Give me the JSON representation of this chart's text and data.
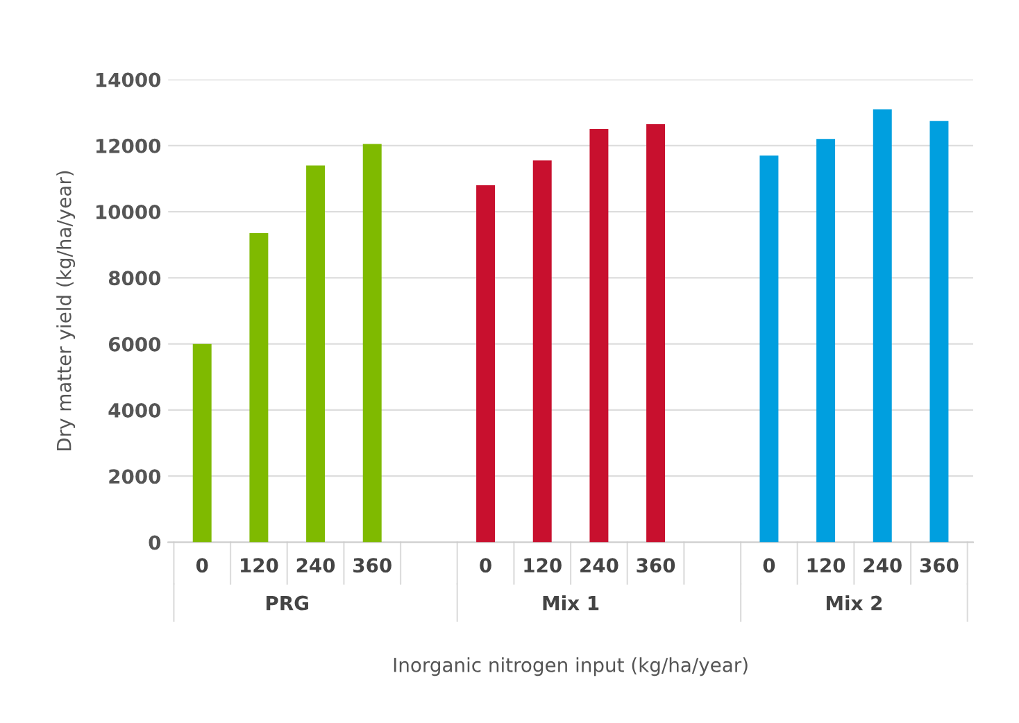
{
  "chart_data": {
    "type": "bar",
    "xlabel": "Inorganic nitrogen input (kg/ha/year)",
    "ylabel": "Dry matter yield (kg/ha/year)",
    "categories": [
      "0",
      "120",
      "240",
      "360",
      null,
      "0",
      "120",
      "240",
      "360",
      null,
      "0",
      "120",
      "240",
      "360"
    ],
    "values": [
      6000,
      9350,
      11400,
      12050,
      null,
      10800,
      11550,
      12500,
      12650,
      null,
      11700,
      12200,
      13100,
      12750
    ],
    "colors": [
      "#7fba00",
      "#7fba00",
      "#7fba00",
      "#7fba00",
      null,
      "#c8102e",
      "#c8102e",
      "#c8102e",
      "#c8102e",
      null,
      "#009fdf",
      "#009fdf",
      "#009fdf",
      "#009fdf"
    ],
    "annotations": [
      "PRG",
      "Mix 1",
      "Mix 2"
    ],
    "ylim": [
      0,
      14000
    ],
    "yticks": [
      0,
      2000,
      4000,
      6000,
      8000,
      10000,
      12000,
      14000
    ],
    "grid": "y",
    "legend": false
  }
}
